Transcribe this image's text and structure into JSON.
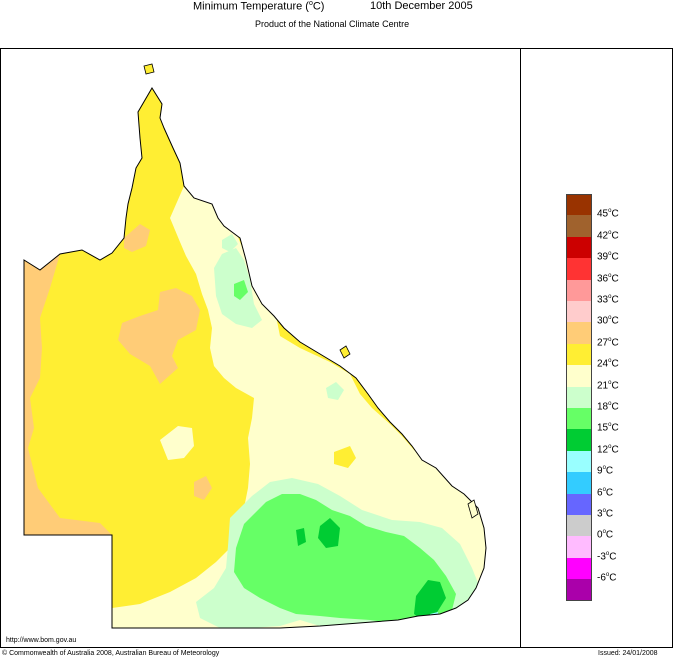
{
  "header": {
    "title_prefix": "Minimum Temperature (",
    "title_degree": "o",
    "title_suffix": "C)",
    "date": "10th December 2005",
    "subtitle": "Product of the National Climate Centre"
  },
  "legend": {
    "unit_degree": "o",
    "unit_suffix": "C",
    "swatch_colors": [
      "#993300",
      "#a0622d",
      "#cc0000",
      "#ff3333",
      "#ff9999",
      "#ffcccc",
      "#ffcc77",
      "#ffee33",
      "#ffffcc",
      "#ccffcc",
      "#66ff66",
      "#00cc33",
      "#99ffff",
      "#33ccff",
      "#6666ff",
      "#cccccc",
      "#ffbbff",
      "#ff00ff",
      "#aa00aa"
    ],
    "labels": [
      "45",
      "42",
      "39",
      "36",
      "33",
      "30",
      "27",
      "24",
      "21",
      "18",
      "15",
      "12",
      "9",
      "6",
      "3",
      "0",
      "-3",
      "-6"
    ]
  },
  "map_colors": {
    "above_30": "#ffcc77",
    "27_to_30": "#ffee33",
    "24_to_27": "#ffffcc",
    "21_to_24": "#ccffcc",
    "18_to_21": "#66ff66",
    "15_to_18": "#00cc33",
    "12_to_15": "#99ffff",
    "coast": "#000000"
  },
  "footer": {
    "url": "http://www.bom.gov.au",
    "copyright": "© Commonwealth of Australia 2008, Australian Bureau of Meteorology",
    "issued": "Issued: 24/01/2008"
  }
}
